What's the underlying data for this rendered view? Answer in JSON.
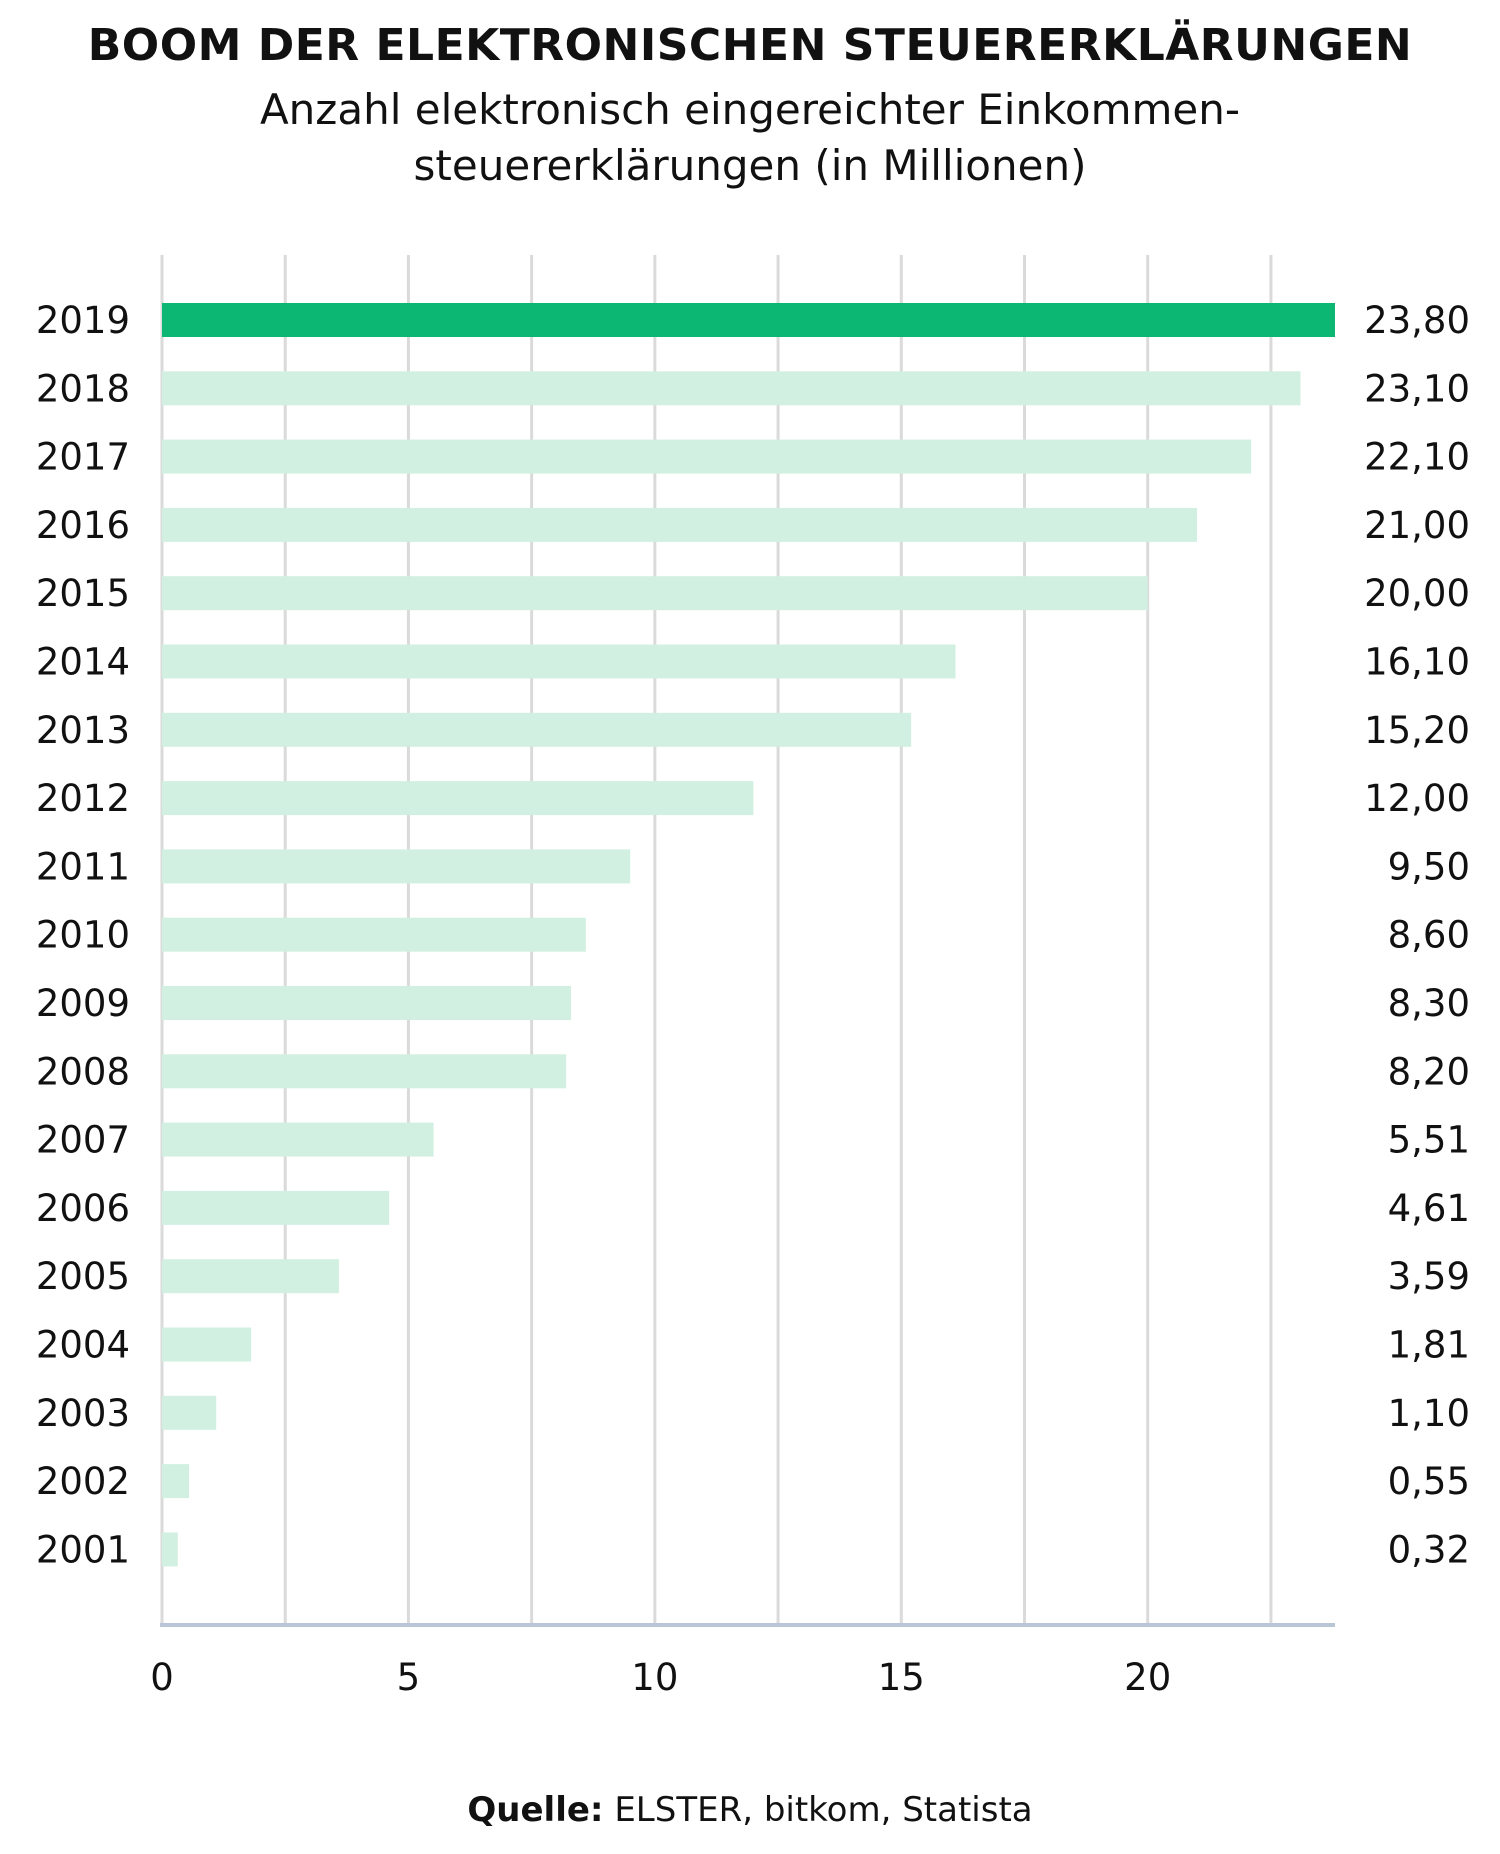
{
  "title": "BOOM DER ELEKTRONISCHEN STEUERERKLÄRUNGEN",
  "subtitle": "Anzahl elektronisch eingereichter Einkommen-steuererklärungen (in Millionen)",
  "source_label": "Quelle:",
  "source_text": "ELSTER, bitkom, Statista",
  "colors": {
    "highlight": "#0bb772",
    "bar": "#d2f0e1",
    "grid": "#dadada",
    "axis": "#b8c6d6"
  },
  "chart_data": {
    "type": "bar",
    "orientation": "horizontal",
    "title": "BOOM DER ELEKTRONISCHEN STEUERERKLÄRUNGEN",
    "subtitle": "Anzahl elektronisch eingereichter Einkommen-steuererklärungen (in Millionen)",
    "categories": [
      "2019",
      "2018",
      "2017",
      "2016",
      "2015",
      "2014",
      "2013",
      "2012",
      "2011",
      "2010",
      "2009",
      "2008",
      "2007",
      "2006",
      "2005",
      "2004",
      "2003",
      "2002",
      "2001"
    ],
    "values": [
      23.8,
      23.1,
      22.1,
      21.0,
      20.0,
      16.1,
      15.2,
      12.0,
      9.5,
      8.6,
      8.3,
      8.2,
      5.51,
      4.61,
      3.59,
      1.81,
      1.1,
      0.55,
      0.32
    ],
    "value_labels": [
      "23,80",
      "23,10",
      "22,10",
      "21,00",
      "20,00",
      "16,10",
      "15,20",
      "12,00",
      "9,50",
      "8,60",
      "8,30",
      "8,20",
      "5,51",
      "4,61",
      "3,59",
      "1,81",
      "1,10",
      "0,55",
      "0,32"
    ],
    "highlight_category": "2019",
    "xticks": [
      0,
      5,
      10,
      15,
      20
    ],
    "xtick_labels": [
      "0",
      "5",
      "10",
      "15",
      "20"
    ],
    "xlim": [
      0,
      23.8
    ],
    "grid": true
  }
}
